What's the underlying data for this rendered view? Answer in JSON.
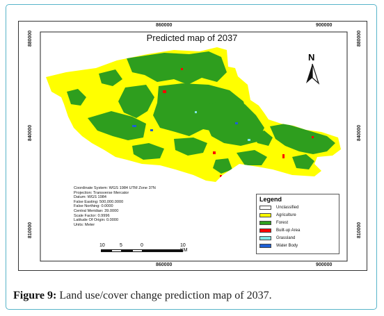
{
  "map": {
    "title": "Predicted map of 2037",
    "north_arrow_label": "N",
    "coords": {
      "top_left": "860000",
      "top_right": "900000",
      "bottom_left": "860000",
      "bottom_right": "900000",
      "left_top": "880000",
      "left_mid": "840000",
      "left_bottom": "810000",
      "right_top": "880000",
      "right_mid": "840000",
      "right_bottom": "810000"
    },
    "projection_info": [
      "Coordinate System: WGS 1984 UTM Zone 37N",
      "Projection: Transverse Mercator",
      "Datum: WGS 1984",
      "False Easting: 500,000.0000",
      "False Northing: 0.0000",
      "Central Meridian: 39.0000",
      "Scale Factor: 0.9996",
      "Latitude Of Origin: 0.0000",
      "Units: Meter"
    ],
    "scale_bar": {
      "labels": [
        "10",
        "5",
        "0",
        "10 KM"
      ]
    },
    "legend": {
      "title": "Legend",
      "items": [
        {
          "label": "Unclassified",
          "color": "#ffffff"
        },
        {
          "label": "Agriculture",
          "color": "#ffff00"
        },
        {
          "label": "Forest",
          "color": "#2e9e1e"
        },
        {
          "label": "Built-up Area",
          "color": "#ff0000"
        },
        {
          "label": "Grassland",
          "color": "#7fe6e6"
        },
        {
          "label": "Water Body",
          "color": "#1e5fd6"
        }
      ]
    },
    "colors": {
      "agriculture": "#ffff00",
      "forest": "#2e9e1e",
      "builtup": "#ff0000",
      "water": "#1e5fd6"
    }
  },
  "caption": {
    "label": "Figure 9:",
    "text": " Land use/cover change prediction map of 2037."
  }
}
